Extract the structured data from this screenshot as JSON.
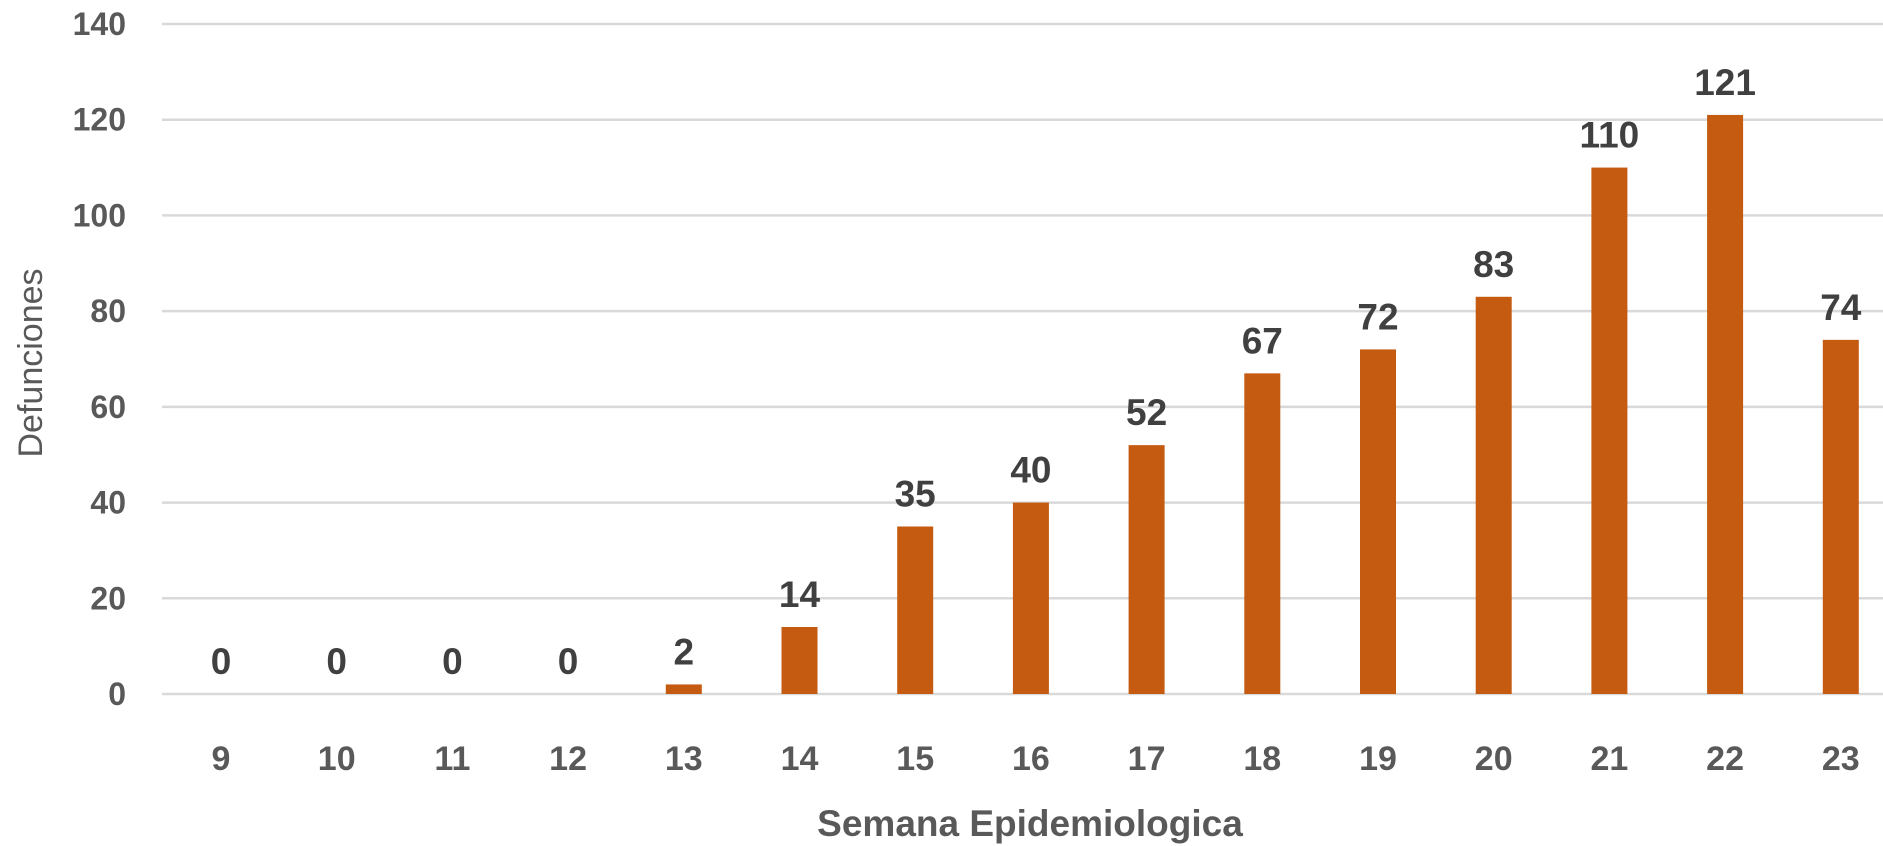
{
  "chart_data": {
    "type": "bar",
    "categories": [
      "9",
      "10",
      "11",
      "12",
      "13",
      "14",
      "15",
      "16",
      "17",
      "18",
      "19",
      "20",
      "21",
      "22",
      "23"
    ],
    "series": [
      {
        "values": [
          0,
          0,
          0,
          0,
          2,
          14,
          35,
          40,
          52,
          67,
          72,
          83,
          110,
          121,
          74
        ]
      }
    ],
    "data_labels": [
      "0",
      "0",
      "0",
      "0",
      "2",
      "14",
      "35",
      "40",
      "52",
      "67",
      "72",
      "83",
      "110",
      "121",
      "74"
    ],
    "y_ticks": [
      "0",
      "20",
      "40",
      "60",
      "80",
      "100",
      "120",
      "140"
    ],
    "xlabel": "Semana Epidemiologica",
    "ylabel": "Defunciones",
    "ylim": [
      0,
      140
    ],
    "grid": true,
    "legend": "none",
    "colors": {
      "bar": "#C55A11",
      "grid": "#D9D9D9",
      "tick_text": "#595959",
      "label_text": "#404040"
    }
  }
}
